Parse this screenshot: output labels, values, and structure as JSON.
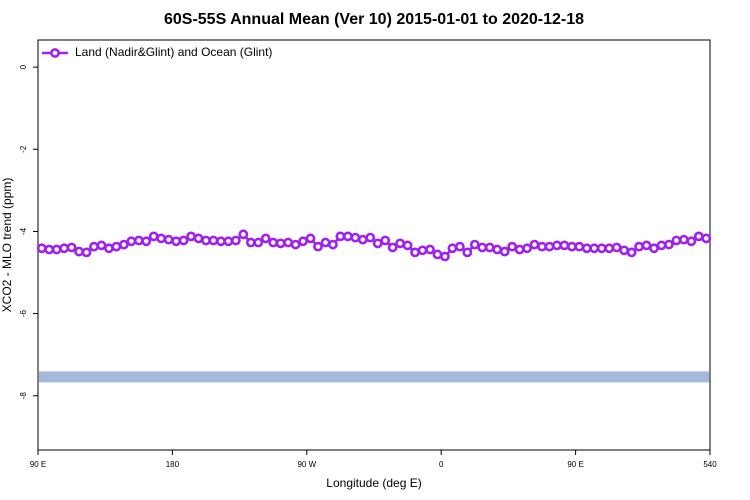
{
  "chart_data": {
    "type": "line",
    "title": "60S-55S Annual Mean (Ver 10)   2015-01-01 to 2020-12-18",
    "x_label": "Longitude (deg E)",
    "y_label": "XCO2 - MLO trend (ppm)",
    "xlim": [
      90,
      540
    ],
    "xticks": [
      {
        "value": 90,
        "label": "90 E"
      },
      180,
      {
        "value": 270,
        "label": "90 W"
      },
      {
        "value": 360,
        "label": "0"
      },
      {
        "value": 450,
        "label": "90 E"
      },
      540
    ],
    "ylim": [
      -9.32,
      0.66
    ],
    "yticks": [
      0,
      -2,
      -4,
      -6,
      -8
    ],
    "legend": "top-left",
    "x": [
      92.5,
      97.5,
      102.5,
      107.5,
      112.5,
      117.5,
      122.5,
      127.5,
      132.5,
      137.5,
      142.5,
      147.5,
      152.5,
      157.5,
      162.5,
      167.5,
      172.5,
      177.5,
      182.5,
      187.5,
      192.5,
      197.5,
      202.5,
      207.5,
      212.5,
      217.5,
      222.5,
      227.5,
      232.5,
      237.5,
      242.5,
      247.5,
      252.5,
      257.5,
      262.5,
      267.5,
      272.5,
      277.5,
      282.5,
      287.5,
      292.5,
      297.5,
      302.5,
      307.5,
      312.5,
      317.5,
      322.5,
      327.5,
      332.5,
      337.5,
      342.5,
      347.5,
      352.5,
      357.5,
      362.5,
      367.5,
      372.5,
      377.5,
      382.5,
      387.5,
      392.5,
      397.5,
      402.5,
      407.5,
      412.5,
      417.5,
      422.5,
      427.5,
      432.5,
      437.5,
      442.5,
      447.5,
      452.5,
      457.5,
      462.5,
      467.5,
      472.5,
      477.5,
      482.5,
      487.5,
      492.5,
      497.5,
      502.5,
      507.5,
      512.5,
      517.5,
      522.5,
      527.5,
      532.5,
      537.5
    ],
    "series": [
      {
        "name": "Land (Nadir&Glint) and Ocean (Glint)",
        "color": "#a020f0",
        "values": [
          -4.41,
          -4.44,
          -4.44,
          -4.41,
          -4.39,
          -4.49,
          -4.51,
          -4.37,
          -4.34,
          -4.41,
          -4.37,
          -4.32,
          -4.24,
          -4.22,
          -4.24,
          -4.12,
          -4.17,
          -4.2,
          -4.24,
          -4.22,
          -4.12,
          -4.17,
          -4.22,
          -4.22,
          -4.24,
          -4.24,
          -4.22,
          -4.07,
          -4.27,
          -4.27,
          -4.17,
          -4.27,
          -4.29,
          -4.27,
          -4.32,
          -4.24,
          -4.17,
          -4.37,
          -4.27,
          -4.32,
          -4.12,
          -4.12,
          -4.15,
          -4.2,
          -4.15,
          -4.29,
          -4.22,
          -4.39,
          -4.29,
          -4.34,
          -4.51,
          -4.46,
          -4.44,
          -4.56,
          -4.61,
          -4.41,
          -4.37,
          -4.51,
          -4.32,
          -4.39,
          -4.39,
          -4.44,
          -4.49,
          -4.37,
          -4.44,
          -4.41,
          -4.32,
          -4.37,
          -4.37,
          -4.34,
          -4.34,
          -4.37,
          -4.37,
          -4.41,
          -4.41,
          -4.41,
          -4.41,
          -4.39,
          -4.46,
          -4.51,
          -4.37,
          -4.34,
          -4.41,
          -4.34,
          -4.32,
          -4.22,
          -4.2,
          -4.24,
          -4.12,
          -4.17
        ]
      }
    ],
    "hline": {
      "value": -7.54,
      "color": "#a5b8db"
    }
  }
}
